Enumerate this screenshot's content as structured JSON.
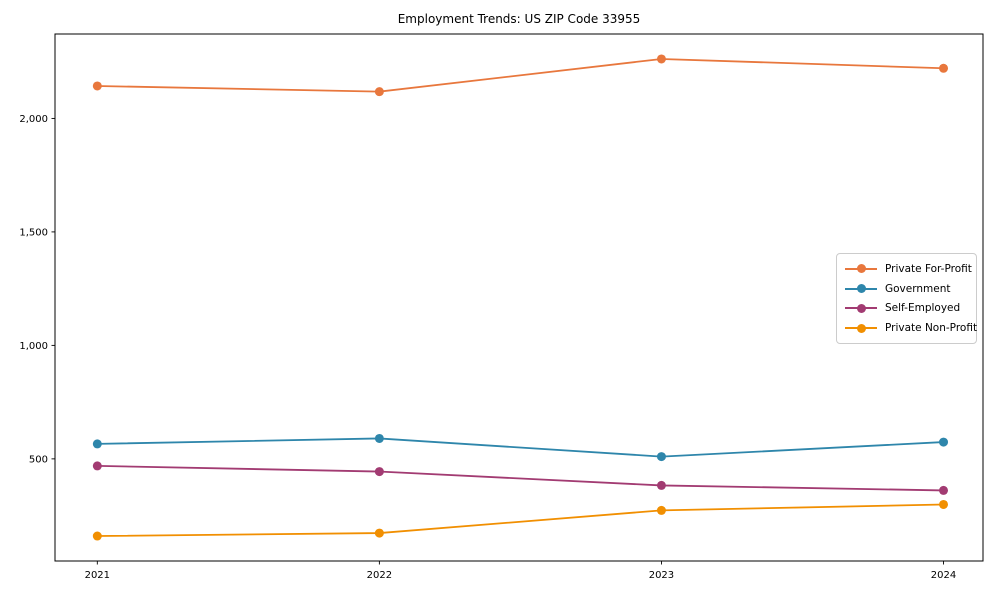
{
  "title": "Employment Trends: US ZIP Code 33955",
  "chart_data": {
    "type": "line",
    "title": "Employment Trends: US ZIP Code 33955",
    "x": [
      2021,
      2022,
      2023,
      2024
    ],
    "xticks": {
      "values": [
        2021,
        2022,
        2023,
        2024
      ],
      "labels": [
        "2021",
        "2022",
        "2023",
        "2024"
      ]
    },
    "yticks": {
      "values": [
        500,
        1000,
        1500,
        2000
      ],
      "labels": [
        "500",
        "1,000",
        "1,500",
        "2,000"
      ]
    },
    "xlim": [
      2020.85,
      2024.14
    ],
    "ylim": [
      50,
      2372
    ],
    "grid": false,
    "legend_position": "right-center",
    "axis_color": "#000000",
    "background_color": "#ffffff",
    "series": [
      {
        "name": "Private For-Profit",
        "color": "#E8773D",
        "values": [
          2143,
          2118,
          2262,
          2221
        ]
      },
      {
        "name": "Government",
        "color": "#2E86AB",
        "values": [
          566,
          590,
          510,
          574
        ]
      },
      {
        "name": "Self-Employed",
        "color": "#A23B72",
        "values": [
          469,
          444,
          383,
          361
        ]
      },
      {
        "name": "Private Non-Profit",
        "color": "#F18F01",
        "values": [
          160,
          173,
          273,
          299
        ]
      }
    ]
  }
}
